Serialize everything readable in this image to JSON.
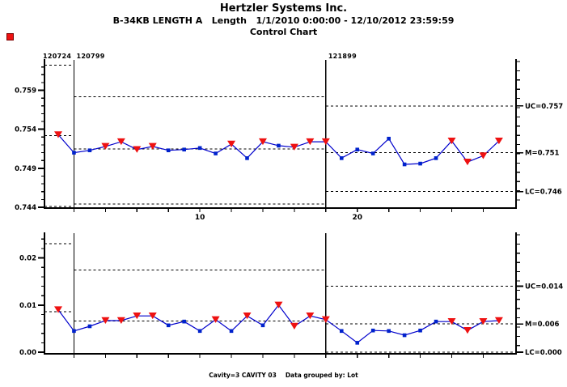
{
  "header": {
    "title": "Hertzler Systems Inc.",
    "subtitle": "B-34KB LENGTH A   Length   1/1/2010 0:00:00 - 12/10/2012 23:59:59",
    "chart_label": "Control Chart"
  },
  "footer": {
    "cavity": "Cavity=3 CAVITY 03",
    "grouped_by": "Data grouped by: Lot"
  },
  "colors": {
    "series_line": "#0000cc",
    "marker_square": "#0022cc",
    "marker_triangle": "#ee1111",
    "alert_indicator": "#ee1111",
    "axis": "#000000"
  },
  "chart_data": [
    {
      "type": "line",
      "name": "individuals-control-chart",
      "n_points": 29,
      "ylim": [
        0.744,
        0.7628
      ],
      "yticks": [
        "0.744",
        "0.749",
        "0.754",
        "0.759"
      ],
      "ytick_values": [
        0.744,
        0.749,
        0.754,
        0.759
      ],
      "minor_tick_step": 0.001,
      "x_labeled_points": [
        {
          "point": 10,
          "label": "10"
        },
        {
          "point": 20,
          "label": "20"
        }
      ],
      "sections": [
        {
          "label": "120724",
          "start_point": 1,
          "uc": 0.7622,
          "m": 0.7532,
          "lc": 0.7441,
          "labels": null
        },
        {
          "label": "120799",
          "start_point": 2,
          "uc": 0.7582,
          "m": 0.7515,
          "lc": 0.7444,
          "labels": null
        },
        {
          "label": "121899",
          "start_point": 18,
          "uc": 0.757,
          "m": 0.751,
          "lc": 0.746,
          "labels": {
            "uc": "UC=0.757",
            "m": "M=0.751",
            "lc": "LC=0.746"
          }
        }
      ],
      "values": [
        0.7533,
        0.751,
        0.7513,
        0.7518,
        0.7524,
        0.7514,
        0.7518,
        0.7513,
        0.7514,
        0.7516,
        0.7509,
        0.7521,
        0.7503,
        0.7524,
        0.7519,
        0.7517,
        0.7524,
        0.7524,
        0.7503,
        0.7514,
        0.7509,
        0.7528,
        0.7495,
        0.7496,
        0.7503,
        0.7525,
        0.7498,
        0.7506,
        0.7525
      ],
      "flagged": [
        true,
        false,
        false,
        true,
        true,
        true,
        true,
        false,
        false,
        false,
        false,
        true,
        false,
        true,
        false,
        true,
        true,
        true,
        false,
        false,
        false,
        false,
        false,
        false,
        false,
        true,
        true,
        true,
        true
      ]
    },
    {
      "type": "line",
      "name": "range-control-chart",
      "n_points": 29,
      "ylim": [
        0,
        0.0252
      ],
      "yticks": [
        "0.00",
        "0.01",
        "0.02"
      ],
      "ytick_values": [
        0,
        0.01,
        0.02
      ],
      "minor_tick_step": 0.002,
      "x_labeled_points": [],
      "sections": [
        {
          "label": "",
          "start_point": 1,
          "uc": 0.023,
          "m": 0.0086,
          "lc": null,
          "labels": null
        },
        {
          "label": "",
          "start_point": 2,
          "uc": 0.0174,
          "m": 0.0066,
          "lc": null,
          "labels": null
        },
        {
          "label": "",
          "start_point": 18,
          "uc": 0.014,
          "m": 0.006,
          "lc": 0.0,
          "labels": {
            "uc": "UC=0.014",
            "m": "M=0.006",
            "lc": "LC=0.000"
          }
        }
      ],
      "values": [
        0.009,
        0.0045,
        0.0055,
        0.0067,
        0.0067,
        0.0077,
        0.0077,
        0.0057,
        0.0065,
        0.0045,
        0.0069,
        0.0045,
        0.0077,
        0.0057,
        0.01,
        0.0055,
        0.0077,
        0.0069,
        0.0045,
        0.002,
        0.0046,
        0.0045,
        0.0036,
        0.0046,
        0.0065,
        0.0065,
        0.0046,
        0.0065,
        0.0067
      ],
      "flagged": [
        true,
        false,
        false,
        true,
        true,
        true,
        true,
        false,
        false,
        false,
        true,
        false,
        true,
        false,
        true,
        true,
        true,
        true,
        false,
        false,
        false,
        false,
        false,
        false,
        false,
        true,
        true,
        true,
        true
      ]
    }
  ]
}
